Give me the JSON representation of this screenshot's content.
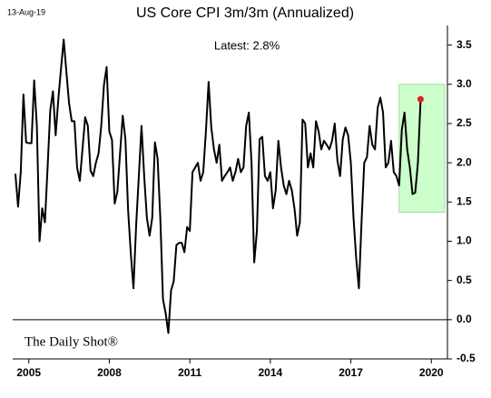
{
  "chart_data": {
    "type": "line",
    "date": "13-Aug-19",
    "title": "US Core CPI 3m/3m (Annualized)",
    "annotation": "Latest:  2.8%",
    "source": "The Daily Shot®",
    "xlim": [
      2004.4,
      2020.6
    ],
    "xticks": [
      2005,
      2008,
      2011,
      2014,
      2017,
      2020
    ],
    "ylim": [
      -0.5,
      3.75
    ],
    "yticks": [
      -0.5,
      {
        "value": 0,
        "label": "0.0"
      },
      0.5,
      {
        "value": 1,
        "label": "1.0"
      },
      1.5,
      {
        "value": 2,
        "label": "2.0"
      },
      2.5,
      {
        "value": 3,
        "label": "3.0"
      },
      3.5
    ],
    "highlight": {
      "xlim": [
        2018.8,
        2020.5
      ],
      "ylim": [
        1.37,
        3.0
      ],
      "color": "#ccffcc"
    },
    "latest_color": "#e02020",
    "series": [
      {
        "name": "US Core CPI 3m/3m (Annualized)",
        "color": "#000000",
        "x": [
          2004.5,
          2004.6,
          2004.7,
          2004.8,
          2004.9,
          2005.0,
          2005.1,
          2005.2,
          2005.3,
          2005.4,
          2005.5,
          2005.6,
          2005.7,
          2005.8,
          2005.9,
          2006.0,
          2006.1,
          2006.2,
          2006.3,
          2006.4,
          2006.5,
          2006.6,
          2006.7,
          2006.8,
          2006.9,
          2007.0,
          2007.1,
          2007.2,
          2007.3,
          2007.4,
          2007.5,
          2007.6,
          2007.7,
          2007.8,
          2007.9,
          2008.0,
          2008.1,
          2008.2,
          2008.3,
          2008.4,
          2008.5,
          2008.6,
          2008.7,
          2008.8,
          2008.9,
          2009.0,
          2009.1,
          2009.2,
          2009.3,
          2009.4,
          2009.5,
          2009.6,
          2009.7,
          2009.8,
          2009.9,
          2010.0,
          2010.1,
          2010.2,
          2010.3,
          2010.4,
          2010.5,
          2010.6,
          2010.7,
          2010.8,
          2010.9,
          2011.0,
          2011.1,
          2011.2,
          2011.3,
          2011.4,
          2011.5,
          2011.6,
          2011.7,
          2011.8,
          2011.9,
          2012.0,
          2012.1,
          2012.2,
          2012.3,
          2012.4,
          2012.5,
          2012.6,
          2012.7,
          2012.8,
          2012.9,
          2013.0,
          2013.1,
          2013.2,
          2013.3,
          2013.4,
          2013.5,
          2013.6,
          2013.7,
          2013.8,
          2013.9,
          2014.0,
          2014.1,
          2014.2,
          2014.3,
          2014.4,
          2014.5,
          2014.6,
          2014.7,
          2014.8,
          2014.9,
          2015.0,
          2015.1,
          2015.2,
          2015.3,
          2015.4,
          2015.5,
          2015.6,
          2015.7,
          2015.8,
          2015.9,
          2016.0,
          2016.1,
          2016.2,
          2016.3,
          2016.4,
          2016.5,
          2016.6,
          2016.7,
          2016.8,
          2016.9,
          2017.0,
          2017.1,
          2017.2,
          2017.3,
          2017.4,
          2017.5,
          2017.6,
          2017.7,
          2017.8,
          2017.9,
          2018.0,
          2018.1,
          2018.2,
          2018.3,
          2018.4,
          2018.5,
          2018.6,
          2018.7,
          2018.8,
          2018.9,
          2019.0,
          2019.1,
          2019.2,
          2019.3,
          2019.4,
          2019.5,
          2019.6
        ],
        "values": [
          1.86,
          1.44,
          1.88,
          2.87,
          2.26,
          2.25,
          2.25,
          3.05,
          2.47,
          1.0,
          1.42,
          1.24,
          1.94,
          2.67,
          2.91,
          2.35,
          2.81,
          3.2,
          3.57,
          3.16,
          2.76,
          2.53,
          2.53,
          1.94,
          1.77,
          2.17,
          2.58,
          2.47,
          1.9,
          1.83,
          2.0,
          2.12,
          2.47,
          2.99,
          3.22,
          2.4,
          2.29,
          1.48,
          1.63,
          2.12,
          2.6,
          2.3,
          1.4,
          0.85,
          0.4,
          1.2,
          1.83,
          2.47,
          1.83,
          1.3,
          1.07,
          1.3,
          2.26,
          2.05,
          1.3,
          0.26,
          0.08,
          -0.17,
          0.37,
          0.49,
          0.95,
          0.98,
          0.98,
          0.86,
          1.18,
          1.13,
          1.88,
          1.94,
          2.0,
          1.77,
          1.88,
          2.4,
          3.03,
          2.45,
          2.17,
          2.0,
          2.23,
          1.77,
          1.83,
          1.88,
          1.94,
          1.77,
          1.88,
          2.05,
          1.88,
          1.94,
          2.47,
          2.64,
          2.0,
          0.73,
          1.13,
          2.3,
          2.33,
          1.83,
          1.77,
          1.88,
          1.42,
          1.65,
          2.28,
          1.94,
          1.71,
          1.6,
          1.77,
          1.65,
          1.42,
          1.07,
          1.24,
          2.55,
          2.5,
          1.94,
          2.12,
          1.94,
          2.53,
          2.4,
          2.17,
          2.28,
          2.23,
          2.17,
          2.28,
          2.5,
          2.03,
          1.83,
          2.3,
          2.45,
          2.35,
          2.0,
          1.3,
          0.78,
          0.4,
          1.25,
          2.0,
          2.07,
          2.47,
          2.23,
          2.17,
          2.7,
          2.83,
          2.64,
          1.94,
          2.0,
          2.28,
          1.88,
          1.83,
          1.71,
          2.42,
          2.64,
          2.17,
          1.94,
          1.6,
          1.62,
          2.0,
          2.81
        ]
      }
    ]
  }
}
